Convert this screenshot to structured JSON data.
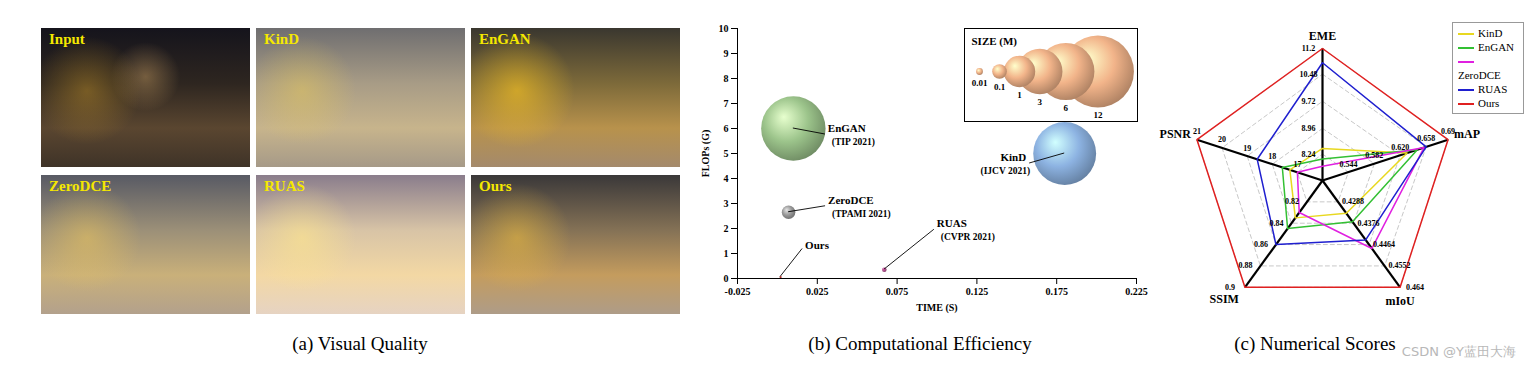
{
  "images": {
    "caption": "(a) Visual Quality",
    "labels": [
      "Input",
      "KinD",
      "EnGAN",
      "ZeroDCE",
      "RUAS",
      "Ours"
    ]
  },
  "chart_data": [
    {
      "type": "bubble",
      "caption": "(b) Computational Efficiency",
      "x_label": "TIME (S)",
      "y_label": "FLOPs (G)",
      "xlim": [
        -0.025,
        0.225
      ],
      "xticks": [
        -0.025,
        0.025,
        0.075,
        0.125,
        0.175,
        0.225
      ],
      "ylim": [
        0,
        10
      ],
      "yticks": [
        0,
        1,
        2,
        3,
        4,
        5,
        6,
        7,
        8,
        9,
        10
      ],
      "points": [
        {
          "name": "EnGAN",
          "venue": "(TIP 2021)",
          "x": 0.01,
          "y": 6.0,
          "size": 8.6,
          "color": "#9cc48b"
        },
        {
          "name": "KinD",
          "venue": "(IJCV 2021)",
          "x": 0.18,
          "y": 5.0,
          "size": 8.0,
          "color": "#8db3e2"
        },
        {
          "name": "ZeroDCE",
          "venue": "(TPAMI 2021)",
          "x": 0.007,
          "y": 2.65,
          "size": 0.08,
          "color": "#9a9a9a"
        },
        {
          "name": "RUAS",
          "venue": "(CVPR 2021)",
          "x": 0.067,
          "y": 0.35,
          "size": 0.003,
          "color": "#b0508c"
        },
        {
          "name": "Ours",
          "x": 0.002,
          "y": 0.06,
          "size": 0.0003,
          "color": "#c0302a"
        }
      ],
      "size_legend": {
        "title": "SIZE (M)",
        "values": [
          0.01,
          0.1,
          1,
          3,
          6,
          12
        ],
        "color": "#f2b48a"
      }
    },
    {
      "type": "radar",
      "caption": "(c) Numerical Scores",
      "legend": "top-right",
      "axes": [
        {
          "name": "EME",
          "lim": [
            7.5,
            11.2
          ],
          "ticks": [
            8.24,
            8.96,
            9.72,
            10.48,
            11.2
          ]
        },
        {
          "name": "mAP",
          "lim": [
            0.506,
            0.69
          ],
          "ticks": [
            0.544,
            0.582,
            {
              "value": 0.62,
              "label": "0.620"
            },
            0.658,
            0.69
          ]
        },
        {
          "name": "mIoU",
          "lim": [
            0.42,
            0.464
          ],
          "ticks": [
            0.4288,
            0.4376,
            0.4464,
            0.4552,
            0.464
          ]
        },
        {
          "name": "SSIM",
          "lim": [
            0.8,
            0.9
          ],
          "ticks": [
            0.82,
            0.84,
            0.86,
            0.88,
            0.9
          ]
        },
        {
          "name": "PSNR",
          "lim": [
            16,
            21
          ],
          "ticks": [
            17,
            18,
            19,
            20,
            21
          ]
        }
      ],
      "series": [
        {
          "name": "KinD",
          "color": "#e8d820",
          "values": [
            8.4,
            0.63,
            0.4335,
            0.835,
            17.3
          ]
        },
        {
          "name": "EnGAN",
          "color": "#33c033",
          "values": [
            8.1,
            0.645,
            0.437,
            0.845,
            17.6
          ]
        },
        {
          "name": "ZeroDCE",
          "color": "#e020e0",
          "values": [
            7.9,
            0.655,
            0.448,
            0.83,
            17.0
          ]
        },
        {
          "name": "RUAS",
          "color": "#1f1fcf",
          "values": [
            10.8,
            0.658,
            0.4445,
            0.86,
            18.6
          ]
        },
        {
          "name": "Ours",
          "color": "#e02020",
          "values": [
            11.2,
            0.69,
            0.464,
            0.9,
            21
          ]
        }
      ]
    }
  ],
  "watermark": "CSDN @Y蓝田大海"
}
